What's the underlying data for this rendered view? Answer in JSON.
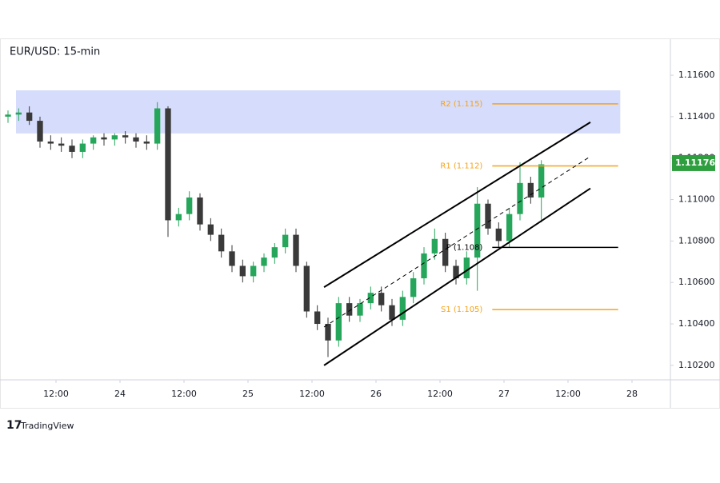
{
  "chart_data": {
    "type": "candlestick",
    "title": "EUR/USD: 15-min",
    "brand": "TradingView",
    "open": [
      1.114,
      1.1141,
      1.1142,
      1.1138,
      1.1128,
      1.1127,
      1.1126,
      1.1123,
      1.1127,
      1.113,
      1.1129,
      1.1131,
      1.113,
      1.1128,
      1.1127,
      1.1144,
      1.109,
      1.1093,
      1.1101,
      1.1088,
      1.1083,
      1.1075,
      1.1068,
      1.1063,
      1.1068,
      1.1072,
      1.1077,
      1.1083,
      1.1068,
      1.1046,
      1.104,
      1.1032,
      1.105,
      1.1044,
      1.105,
      1.1055,
      1.1049,
      1.1042,
      1.1053,
      1.1062,
      1.1074,
      1.1081,
      1.1068,
      1.1062,
      1.1072,
      1.1098,
      1.1086,
      1.108,
      1.1093,
      1.1108,
      1.1101
    ],
    "high": [
      1.1143,
      1.1144,
      1.1145,
      1.114,
      1.1131,
      1.113,
      1.1129,
      1.1129,
      1.1131,
      1.1132,
      1.1132,
      1.1133,
      1.1132,
      1.1131,
      1.1147,
      1.1145,
      1.1096,
      1.1104,
      1.1103,
      1.1091,
      1.1086,
      1.1078,
      1.1071,
      1.107,
      1.1074,
      1.1079,
      1.1086,
      1.1086,
      1.107,
      1.1049,
      1.1043,
      1.1053,
      1.1053,
      1.1052,
      1.1058,
      1.1058,
      1.1052,
      1.1056,
      1.1065,
      1.1077,
      1.1086,
      1.1084,
      1.1071,
      1.1075,
      1.1106,
      1.11,
      1.1089,
      1.1096,
      1.1118,
      1.1111,
      1.1119
    ],
    "low": [
      1.1137,
      1.1138,
      1.1136,
      1.1125,
      1.1124,
      1.1123,
      1.112,
      1.112,
      1.1124,
      1.1126,
      1.1126,
      1.1127,
      1.1125,
      1.1124,
      1.1124,
      1.1082,
      1.1087,
      1.109,
      1.1085,
      1.108,
      1.1072,
      1.1065,
      1.106,
      1.106,
      1.1065,
      1.1069,
      1.1074,
      1.1065,
      1.1043,
      1.1037,
      1.1024,
      1.1029,
      1.1041,
      1.1041,
      1.1047,
      1.1046,
      1.1039,
      1.1039,
      1.105,
      1.1059,
      1.1071,
      1.1065,
      1.1059,
      1.1059,
      1.1056,
      1.1083,
      1.1077,
      1.1077,
      1.109,
      1.1098,
      1.1089
    ],
    "close": [
      1.1141,
      1.1142,
      1.1138,
      1.1128,
      1.1127,
      1.1126,
      1.1123,
      1.1127,
      1.113,
      1.1129,
      1.1131,
      1.113,
      1.1128,
      1.1127,
      1.1144,
      1.109,
      1.1093,
      1.1101,
      1.1088,
      1.1083,
      1.1075,
      1.1068,
      1.1063,
      1.1068,
      1.1072,
      1.1077,
      1.1083,
      1.1068,
      1.1046,
      1.104,
      1.1032,
      1.105,
      1.1044,
      1.105,
      1.1055,
      1.1049,
      1.1042,
      1.1053,
      1.1062,
      1.1074,
      1.1081,
      1.1068,
      1.1062,
      1.1072,
      1.1098,
      1.1086,
      1.108,
      1.1093,
      1.1108,
      1.1101,
      1.1117
    ],
    "up_color": "#26a65b",
    "down_color": "#3a3a3a",
    "xlim": [
      -0.15,
      62.1
    ],
    "ylim": [
      1.1013,
      1.1177
    ],
    "xticks": [
      {
        "value": 4.5,
        "label": "12:00"
      },
      {
        "value": 10.5,
        "label": "24"
      },
      {
        "value": 16.5,
        "label": "12:00"
      },
      {
        "value": 22.5,
        "label": "25"
      },
      {
        "value": 28.5,
        "label": "12:00"
      },
      {
        "value": 34.5,
        "label": "26"
      },
      {
        "value": 40.5,
        "label": "12:00"
      },
      {
        "value": 46.5,
        "label": "27"
      },
      {
        "value": 52.5,
        "label": "12:00"
      },
      {
        "value": 58.5,
        "label": "28"
      }
    ],
    "yticks": [
      {
        "value": 1.116,
        "label": "1.11600"
      },
      {
        "value": 1.114,
        "label": "1.11400"
      },
      {
        "value": 1.112,
        "label": "1.11200"
      },
      {
        "value": 1.11,
        "label": "1.11000"
      },
      {
        "value": 1.108,
        "label": "1.10800"
      },
      {
        "value": 1.106,
        "label": "1.10600"
      },
      {
        "value": 1.104,
        "label": "1.10400"
      },
      {
        "value": 1.102,
        "label": "1.10200"
      }
    ],
    "last_price": {
      "value": 1.11176,
      "label": "1.11176",
      "color": "#2e9e3e"
    },
    "zone": {
      "x": [
        0.75,
        57.4
      ],
      "y": [
        1.11319,
        1.11527
      ],
      "color": "#d6dcfb"
    },
    "levels": [
      {
        "label": "R2 (1.115)",
        "value": 1.11462,
        "x": [
          45.4,
          57.2
        ],
        "color": "#f5a31a"
      },
      {
        "label": "R1 (1.112)",
        "value": 1.11162,
        "x": [
          45.4,
          57.2
        ],
        "color": "#f5a31a"
      },
      {
        "label": "P (1.108)",
        "value": 1.10769,
        "x": [
          45.4,
          57.2
        ],
        "color": "#000000"
      },
      {
        "label": "S1 (1.105)",
        "value": 1.10469,
        "x": [
          45.4,
          57.2
        ],
        "color": "#f5a31a"
      }
    ],
    "channel": {
      "x": [
        29.63,
        54.6
      ],
      "upper": [
        1.10577,
        1.11373
      ],
      "middle": [
        1.10385,
        1.11208
      ],
      "lower": [
        1.102,
        1.11054
      ]
    }
  }
}
